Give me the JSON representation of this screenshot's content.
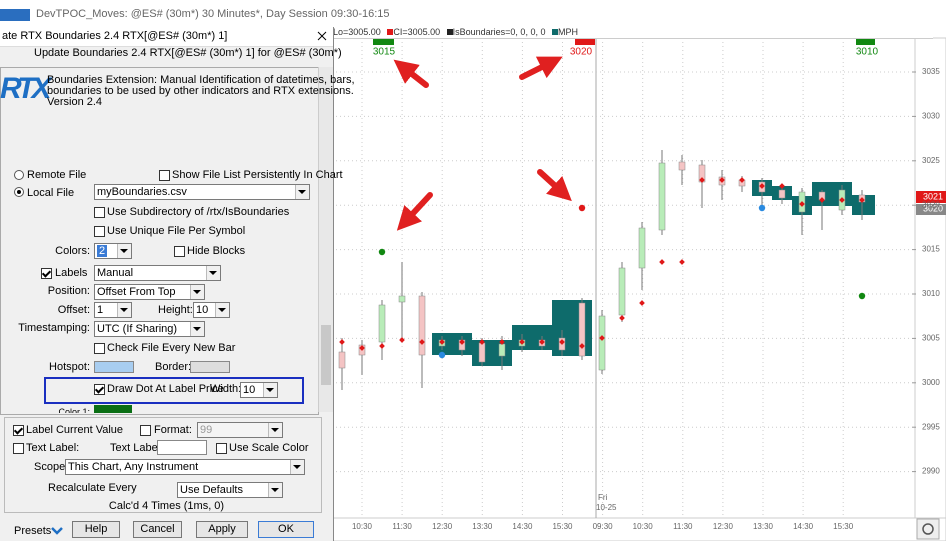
{
  "window_title": "DevTPOC_Moves: @ES# (30m*) 30 Minutes*, Day Session 09:30-16:15",
  "chart_legend": [
    "Lo=3005.00",
    "CI=3005.00",
    "IsBoundaries=0, 0, 0, 0",
    "MPH"
  ],
  "dialog": {
    "title": "ate RTX Boundaries 2.4 RTX[@ES# (30m*) 1]",
    "header": "Update Boundaries 2.4 RTX[@ES# (30m*) 1] for @ES# (30m*)",
    "logo": "RTX",
    "description": [
      "Boundaries Extension: Manual Identification of datetimes, bars,",
      "boundaries to be used by other indicators and RTX extensions.",
      "Version 2.4"
    ],
    "remote_file": "Remote File",
    "show_file_list": "Show File List Persistently In Chart",
    "local_file": "Local File",
    "file_name": "myBoundaries.csv",
    "use_subdirectory": "Use Subdirectory of /rtx/IsBoundaries",
    "use_unique_file": "Use Unique File Per Symbol",
    "colors_label": "Colors:",
    "colors_value": "2",
    "hide_blocks": "Hide Blocks",
    "labels": "Labels",
    "labels_value": "Manual",
    "position_label": "Position:",
    "position_value": "Offset From Top",
    "offset_label": "Offset:",
    "offset_value": "1",
    "height_label": "Height:",
    "height_value": "10",
    "timestamping_label": "Timestamping:",
    "timestamping_value": "UTC (If Sharing)",
    "check_file": "Check File Every New Bar",
    "hotspot_label": "Hotspot:",
    "border_label": "Border:",
    "draw_dot": "Draw Dot At Label Price",
    "width_label": "Width:",
    "width_value": "10",
    "color1_label": "Color 1:",
    "label_current_value": "Label Current Value",
    "format_label": "Format:",
    "format_value": "99",
    "text_label_check": "Text Label:",
    "text_label_label": "Text Label:",
    "use_scale_color": "Use Scale Color",
    "scope_label": "Scope:",
    "scope_value": "This Chart, Any Instrument",
    "recalculate_label": "Recalculate Every",
    "recalculate_value": "Use Defaults",
    "status": "Calc'd 4 Times (1ms, 0)",
    "presets": "Presets",
    "buttons": [
      "Help",
      "Cancel",
      "Apply",
      "OK"
    ]
  },
  "chart": {
    "boundary_labels": [
      "3015",
      "3020",
      "3010"
    ],
    "price_labels": [
      "3035",
      "3030",
      "3025",
      "3020",
      "3015",
      "3010",
      "3005",
      "3000",
      "2995",
      "2990"
    ],
    "price_tags": [
      "3021",
      "3020"
    ],
    "time_labels": [
      "10:30",
      "11:30",
      "12:30",
      "13:30",
      "14:30",
      "15:30",
      "09:30",
      "10:30",
      "11:30",
      "12:30",
      "13:30",
      "14:30",
      "15:30"
    ],
    "date_label": [
      "Fri",
      "10-25"
    ]
  }
}
